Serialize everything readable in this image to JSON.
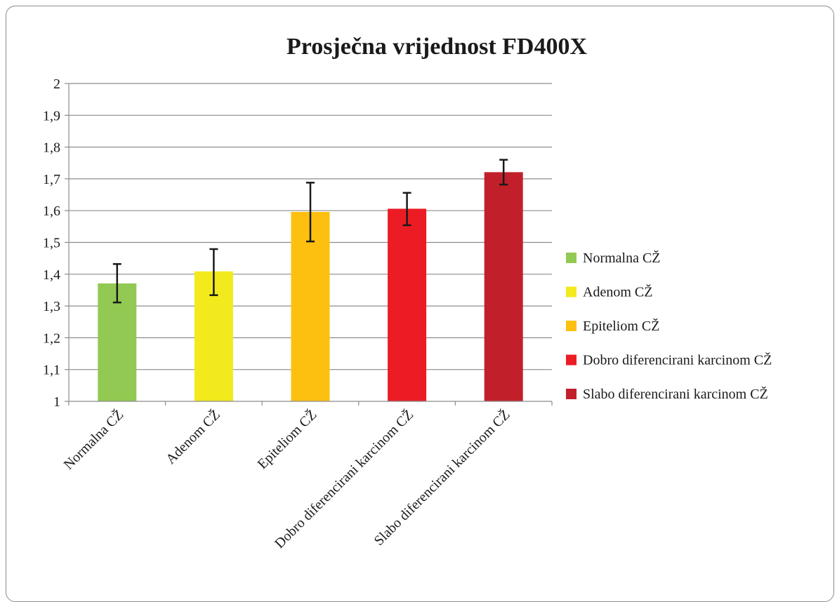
{
  "chart_data": {
    "type": "bar",
    "title": "Prosječna vrijednost FD400X",
    "xlabel": "",
    "ylabel": "",
    "ylim": [
      1,
      2
    ],
    "yticks": [
      "1",
      "1,1",
      "1,2",
      "1,3",
      "1,4",
      "1,5",
      "1,6",
      "1,7",
      "1,8",
      "1,9",
      "2"
    ],
    "grid": true,
    "legend_position": "right",
    "categories": [
      "Normalna CŽ",
      "Adenom CŽ",
      "Epiteliom CŽ",
      "Dobro diferencirani karcinom CŽ",
      "Slabo diferencirani karcinom CŽ"
    ],
    "values": [
      1.371,
      1.409,
      1.596,
      1.606,
      1.721
    ],
    "error_low": [
      1.311,
      1.334,
      1.503,
      1.554,
      1.682
    ],
    "error_high": [
      1.432,
      1.479,
      1.688,
      1.656,
      1.76
    ],
    "colors": [
      "#92c953",
      "#f2ea1d",
      "#fdc010",
      "#ec1c24",
      "#c1202a"
    ],
    "legend": [
      "Normalna CŽ",
      "Adenom CŽ",
      "Epiteliom CŽ",
      "Dobro diferencirani karcinom CŽ",
      "Slabo diferencirani karcinom CŽ"
    ]
  }
}
